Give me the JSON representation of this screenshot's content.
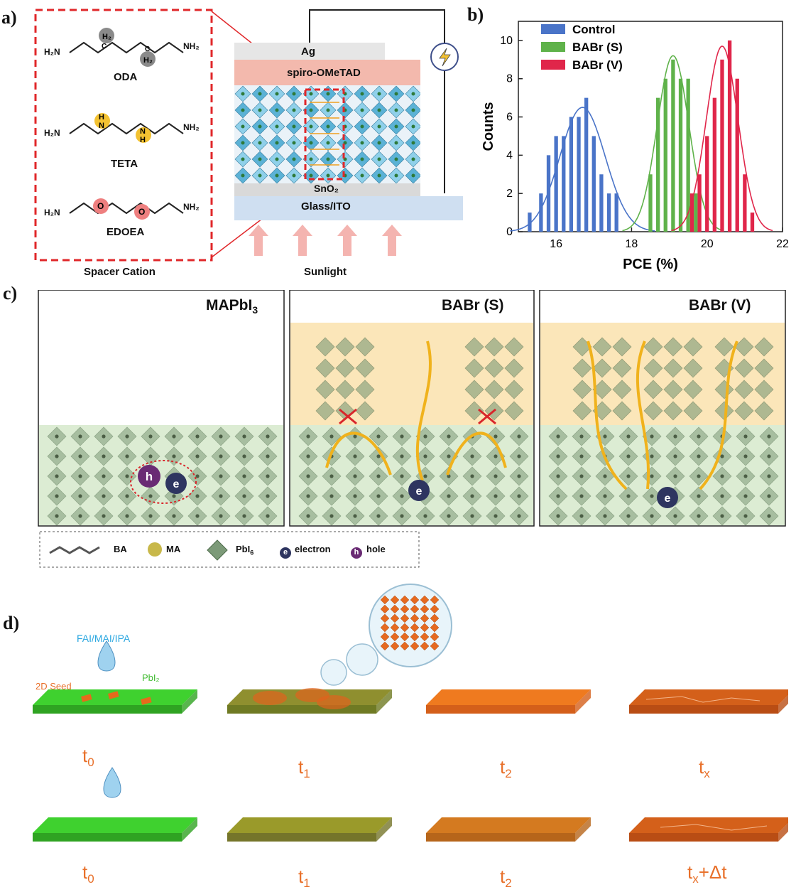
{
  "panels": {
    "a": "a)",
    "b": "b)",
    "c": "c)",
    "d": "d)"
  },
  "panel_a": {
    "molecules": [
      {
        "name": "ODA",
        "left_group": "H₂N",
        "right_group": "NH₂",
        "center_label": "H₂",
        "center_sub": "C"
      },
      {
        "name": "TETA",
        "left_group": "H₂N",
        "right_group": "NH₂",
        "center_label": "H"
      },
      {
        "name": "EDOEA",
        "left_group": "H₂N",
        "right_group": "NH₂",
        "center_label": "O"
      }
    ],
    "spacer_caption": "Spacer Cation",
    "sunlight_caption": "Sunlight",
    "layers": {
      "ag": "Ag",
      "spiro": "spiro-OMeTAD",
      "sno2": "SnO₂",
      "glass": "Glass/ITO"
    },
    "colors": {
      "ag": "#e6e6e6",
      "spiro": "#f3b9ad",
      "sno2": "#d9d9d9",
      "glass": "#cfdff1",
      "dash_red": "#e0272a"
    }
  },
  "chart_data": {
    "type": "bar",
    "xlabel": "PCE (%)",
    "ylabel": "Counts",
    "xlim": [
      15,
      22
    ],
    "ylim": [
      0,
      11
    ],
    "xticks": [
      16,
      18,
      20,
      22
    ],
    "yticks": [
      0,
      2,
      4,
      6,
      8,
      10
    ],
    "legend_position": "top-left",
    "series": [
      {
        "name": "Control",
        "color": "#4a74c8",
        "x": [
          15.3,
          15.6,
          15.8,
          16.0,
          16.2,
          16.4,
          16.6,
          16.8,
          17.0,
          17.2,
          17.4,
          17.6
        ],
        "values": [
          1,
          2,
          4,
          5,
          5,
          6,
          6,
          7,
          5,
          3,
          2,
          2
        ],
        "fit": {
          "mu": 16.7,
          "sigma": 0.6,
          "peak": 6.5
        }
      },
      {
        "name": "BABr (S)",
        "color": "#5fb24a",
        "x": [
          18.5,
          18.7,
          18.9,
          19.1,
          19.3,
          19.5,
          19.7
        ],
        "values": [
          3,
          7,
          8,
          9,
          8,
          8,
          2
        ],
        "fit": {
          "mu": 19.1,
          "sigma": 0.42,
          "peak": 9.2
        }
      },
      {
        "name": "BABr (V)",
        "color": "#e0264a",
        "x": [
          19.6,
          19.8,
          20.0,
          20.2,
          20.4,
          20.6,
          20.8,
          21.0,
          21.2
        ],
        "values": [
          2,
          3,
          5,
          7,
          9,
          10,
          8,
          3,
          1
        ],
        "fit": {
          "mu": 20.4,
          "sigma": 0.42,
          "peak": 9.7
        }
      }
    ]
  },
  "panel_c": {
    "boxes": [
      {
        "title": "MAPbI",
        "title_sub": "3"
      },
      {
        "title": "BABr (S)"
      },
      {
        "title": "BABr (V)"
      }
    ],
    "legend": [
      {
        "label": "BA"
      },
      {
        "label": "MA"
      },
      {
        "label": "PbI",
        "sub": "6"
      },
      {
        "label": "electron",
        "glyph": "e"
      },
      {
        "label": "hole",
        "glyph": "h"
      }
    ],
    "colors": {
      "green_bg": "#dcecd3",
      "yellow_bg": "#fbe6b9",
      "arrow": "#f0b21c",
      "cross": "#d8262b",
      "octa": "#7c9a78"
    }
  },
  "panel_d": {
    "solution_label": "FAI/MAI/IPA",
    "seed_label": "2D Seed",
    "pbi2_label": "PbI₂",
    "top_times": [
      {
        "main": "t",
        "sub": "0"
      },
      {
        "main": "t",
        "sub": "1"
      },
      {
        "main": "t",
        "sub": "2"
      },
      {
        "main": "t",
        "sub": "x"
      }
    ],
    "bottom_times": [
      {
        "main": "t",
        "sub": "0"
      },
      {
        "main": "t",
        "sub": "1"
      },
      {
        "main": "t",
        "sub": "2"
      },
      {
        "main": "t",
        "sub": "x",
        "suffix": "+Δt"
      }
    ],
    "colors": {
      "green": "#3fd12f",
      "olive": "#9a9a2a",
      "orange": "#ef7a1f",
      "dark_orange": "#d4601a",
      "label_orange": "#e8702a",
      "blue_text": "#2aa7e0"
    }
  }
}
